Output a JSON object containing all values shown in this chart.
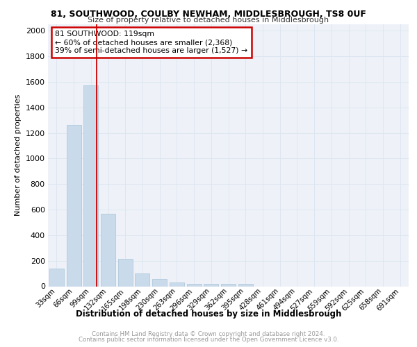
{
  "title1": "81, SOUTHWOOD, COULBY NEWHAM, MIDDLESBROUGH, TS8 0UF",
  "title2": "Size of property relative to detached houses in Middlesbrough",
  "xlabel": "Distribution of detached houses by size in Middlesbrough",
  "ylabel": "Number of detached properties",
  "footer1": "Contains HM Land Registry data © Crown copyright and database right 2024.",
  "footer2": "Contains public sector information licensed under the Open Government Licence v3.0.",
  "bar_color": "#c9daea",
  "bar_edge_color": "#a8c4d8",
  "grid_color": "#dde6f0",
  "annotation_box_color": "#cc0000",
  "vline_color": "#cc0000",
  "categories": [
    "33sqm",
    "66sqm",
    "99sqm",
    "132sqm",
    "165sqm",
    "198sqm",
    "230sqm",
    "263sqm",
    "296sqm",
    "329sqm",
    "362sqm",
    "395sqm",
    "428sqm",
    "461sqm",
    "494sqm",
    "527sqm",
    "559sqm",
    "592sqm",
    "625sqm",
    "658sqm",
    "691sqm"
  ],
  "values": [
    140,
    1265,
    1570,
    570,
    215,
    100,
    55,
    30,
    20,
    20,
    20,
    20,
    0,
    0,
    0,
    0,
    0,
    0,
    0,
    0,
    0
  ],
  "annotation_text": "81 SOUTHWOOD: 119sqm\n← 60% of detached houses are smaller (2,368)\n39% of semi-detached houses are larger (1,527) →",
  "ylim": [
    0,
    2050
  ],
  "yticks": [
    0,
    200,
    400,
    600,
    800,
    1000,
    1200,
    1400,
    1600,
    1800,
    2000
  ],
  "background_color": "#eef2f8",
  "vline_x": 2.35
}
